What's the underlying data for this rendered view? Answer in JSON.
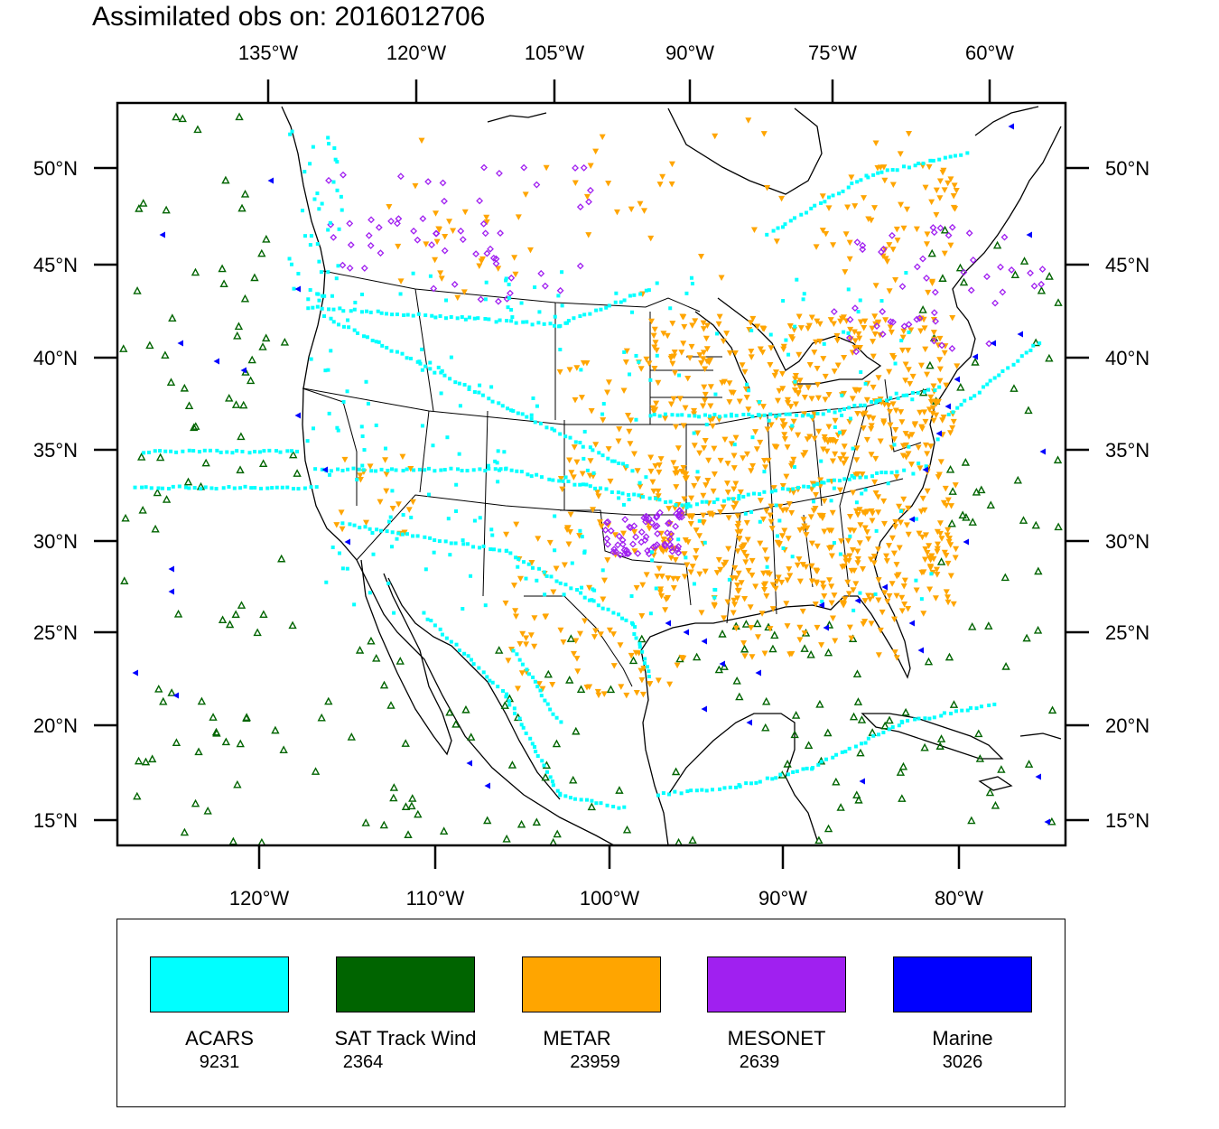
{
  "title": "Assimilated obs on: 2016012706",
  "top_lon_ticks": [
    "135°W",
    "120°W",
    "105°W",
    "90°W",
    "75°W",
    "60°W"
  ],
  "bottom_lon_ticks": [
    "120°W",
    "110°W",
    "100°W",
    "90°W",
    "80°W"
  ],
  "lat_ticks": [
    "50°N",
    "45°N",
    "40°N",
    "35°N",
    "30°N",
    "25°N",
    "20°N",
    "15°N"
  ],
  "legend": [
    {
      "name": "ACARS",
      "count": "9231",
      "color": "#00ffff",
      "marker": "square-dot"
    },
    {
      "name": "SAT Track Wind",
      "count": "2364",
      "color": "#006400",
      "marker": "triangle-outline"
    },
    {
      "name": "METAR",
      "count": "23959",
      "color": "#ffa500",
      "marker": "inverted-triangle"
    },
    {
      "name": "MESONET",
      "count": "2639",
      "color": "#a020f0",
      "marker": "diamond"
    },
    {
      "name": "Marine",
      "count": "3026",
      "color": "#0000ff",
      "marker": "left-triangle"
    }
  ]
}
